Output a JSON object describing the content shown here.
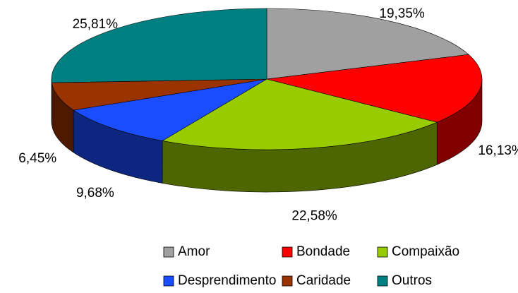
{
  "chart_data": {
    "type": "pie",
    "categories": [
      "Amor",
      "Bondade",
      "Compaixão",
      "Desprendimento",
      "Caridade",
      "Outros"
    ],
    "values": [
      19.35,
      16.13,
      22.58,
      9.68,
      6.45,
      25.81
    ],
    "value_labels": [
      "19,35%",
      "16,13%",
      "22,58%",
      "9,68%",
      "6,45%",
      "25,81%"
    ],
    "colors": [
      "#a0a0a0",
      "#ff0000",
      "#99cc00",
      "#1a4dff",
      "#993300",
      "#008080"
    ],
    "legend": "bottom"
  }
}
